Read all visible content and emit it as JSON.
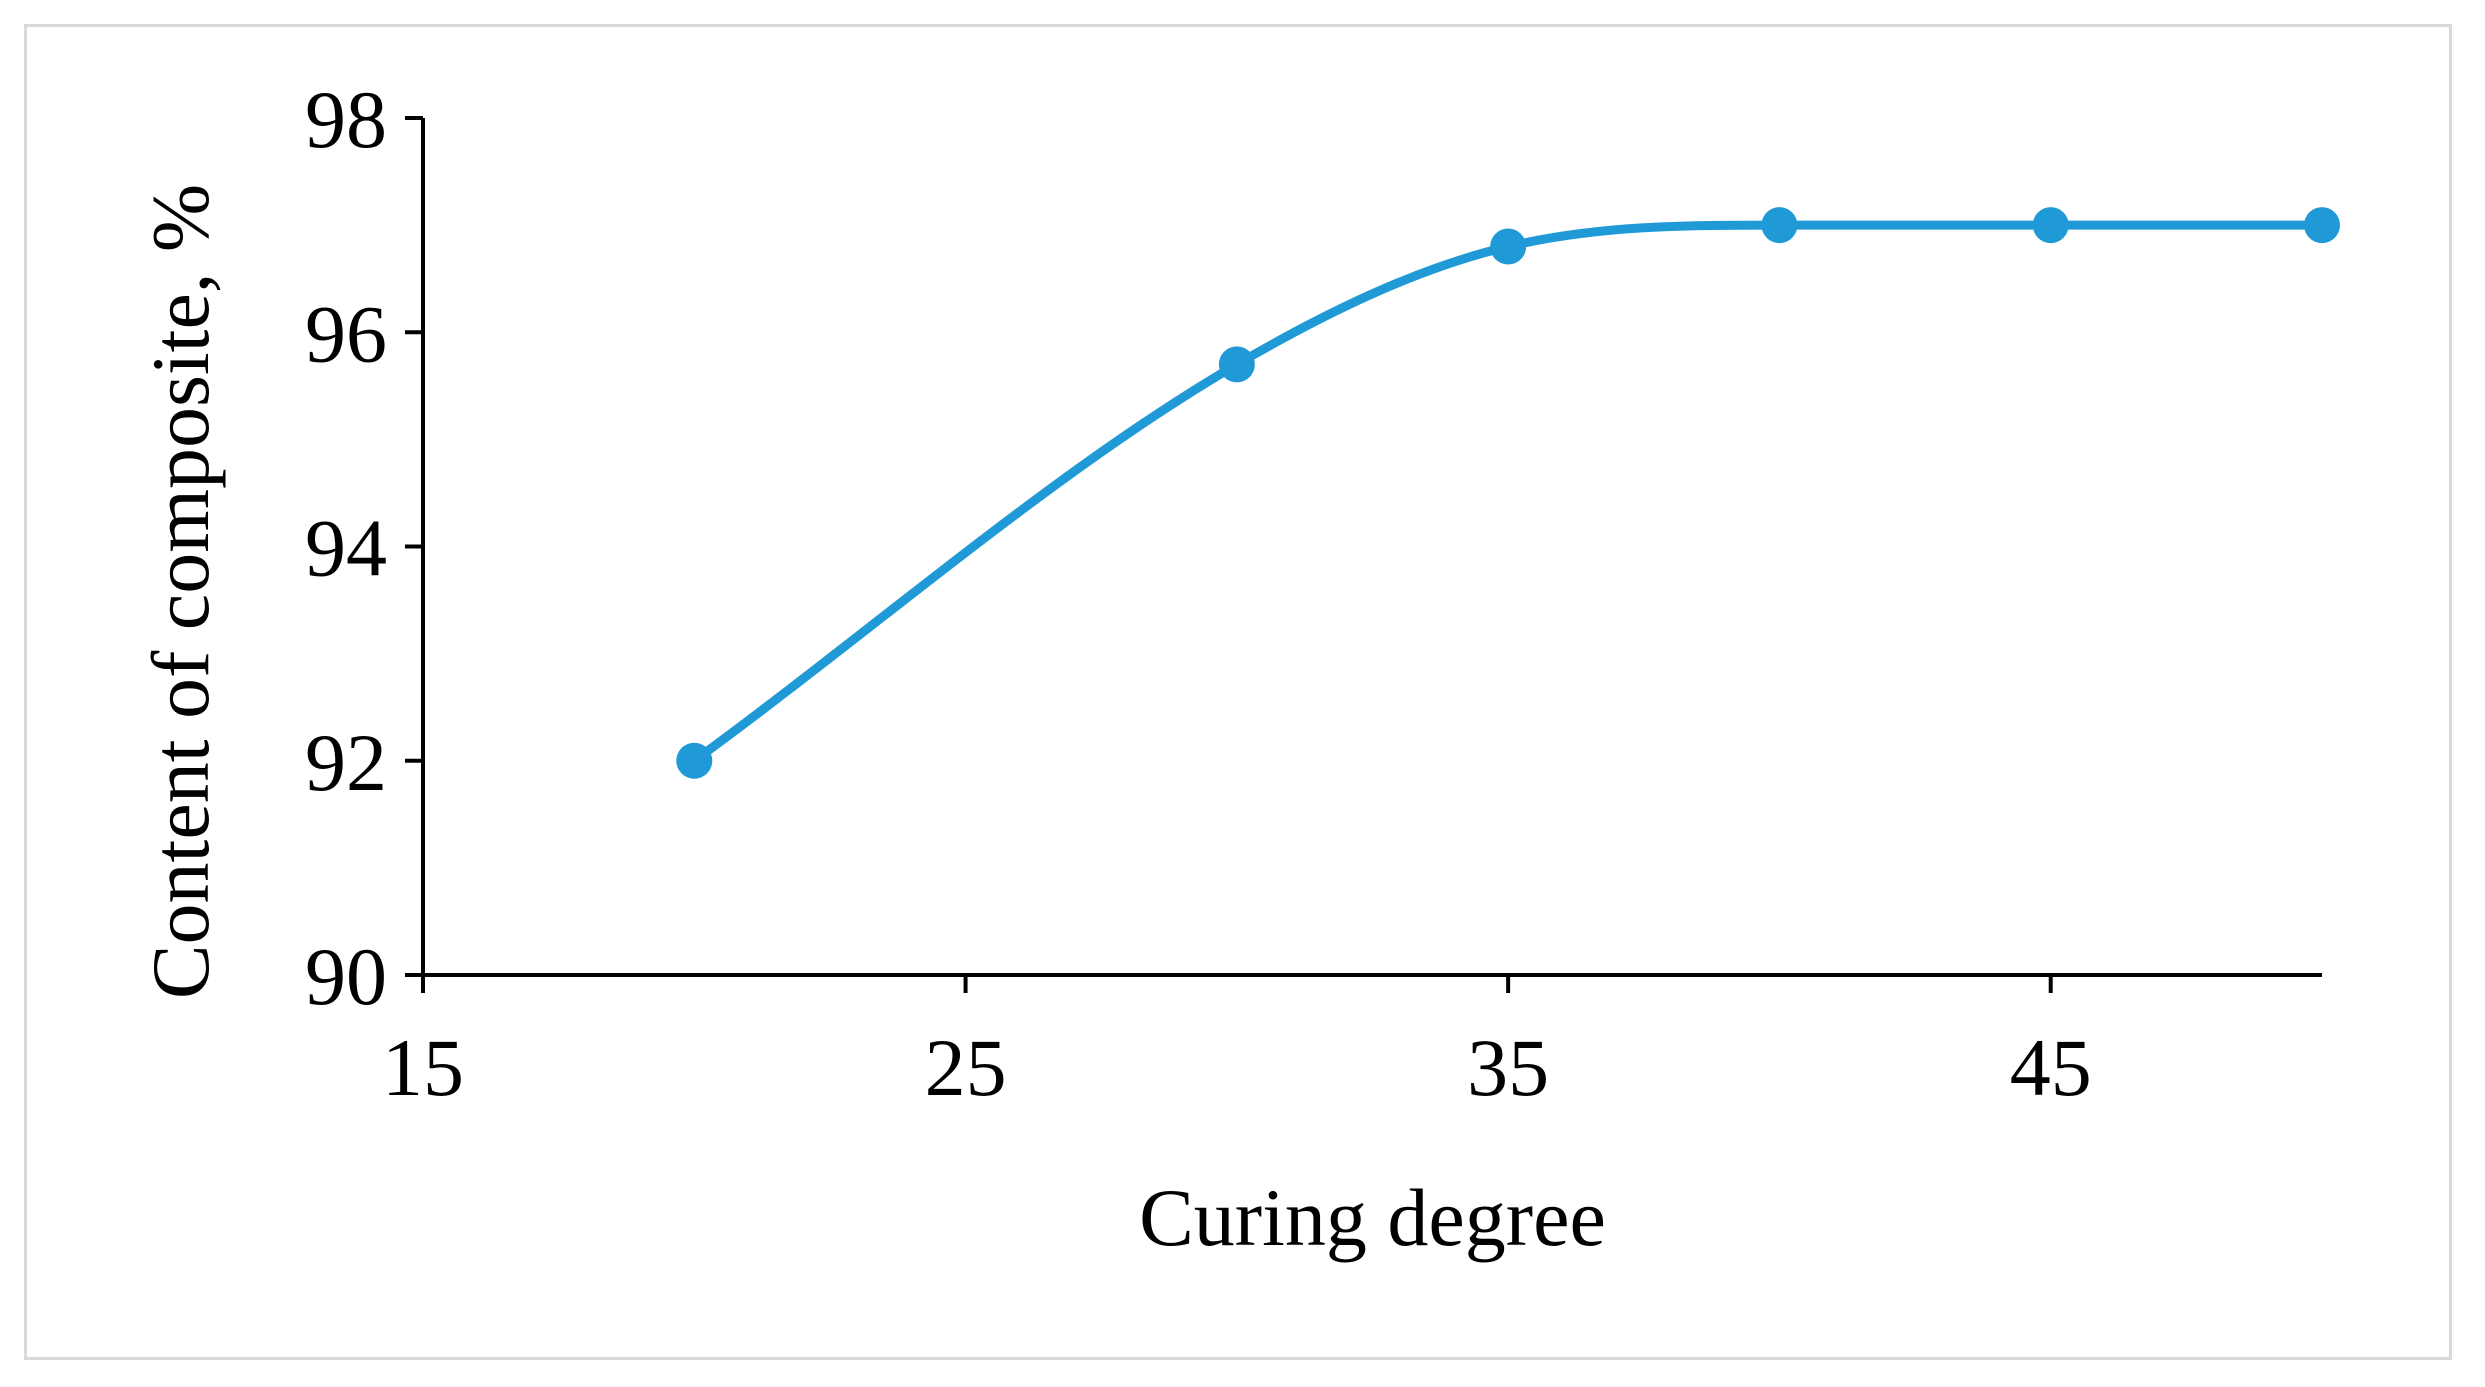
{
  "chart_data": {
    "type": "line",
    "title": "",
    "xlabel": "Curing degree",
    "ylabel": "Content of composite, %",
    "xlim": [
      15,
      50
    ],
    "ylim": [
      90,
      98
    ],
    "x_ticks": [
      15,
      25,
      35,
      45
    ],
    "y_ticks": [
      90,
      92,
      94,
      96,
      98
    ],
    "x_tick_labels": [
      "15",
      "25",
      "35",
      "45"
    ],
    "y_tick_labels": [
      "90",
      "92",
      "94",
      "96",
      "98"
    ],
    "grid": false,
    "legend": "none",
    "smooth": true,
    "series": [
      {
        "color": "#1f9ad6",
        "marker": "circle",
        "x": [
          20,
          30,
          35,
          40,
          45,
          50
        ],
        "y": [
          92.0,
          95.7,
          96.8,
          97.0,
          97.0,
          97.0
        ]
      }
    ]
  }
}
